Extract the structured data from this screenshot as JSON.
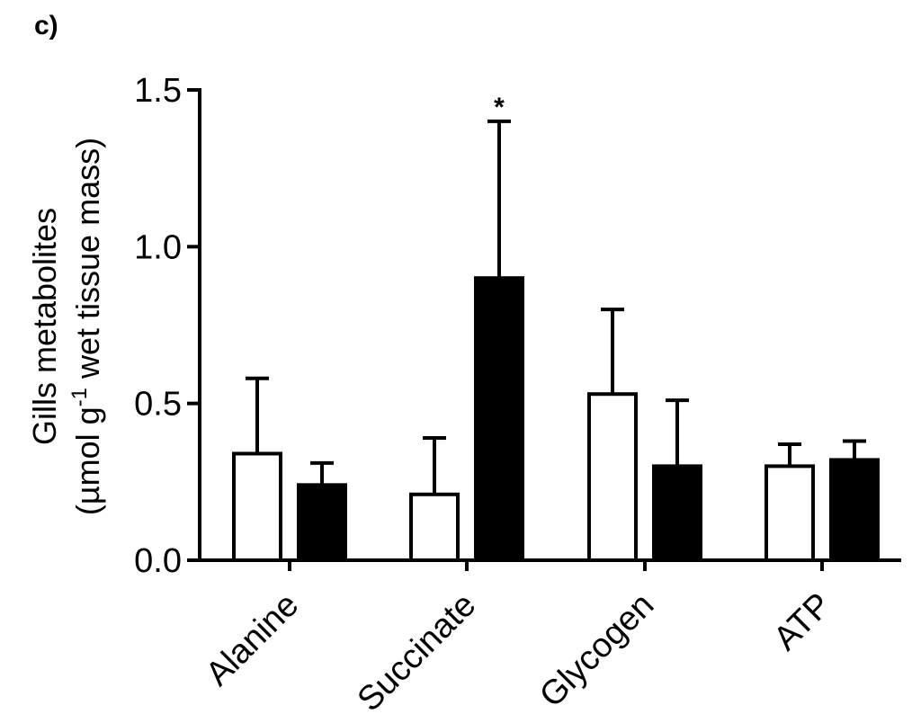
{
  "panel_label": "c)",
  "chart_data": {
    "type": "bar",
    "categories": [
      "Alanine",
      "Succinate",
      "Glycogen",
      "ATP"
    ],
    "series": [
      {
        "values": [
          0.34,
          0.21,
          0.53,
          0.3
        ],
        "errors": [
          0.24,
          0.18,
          0.27,
          0.07
        ],
        "fill": "#ffffff"
      },
      {
        "values": [
          0.24,
          0.9,
          0.3,
          0.32
        ],
        "errors": [
          0.07,
          0.5,
          0.21,
          0.06
        ],
        "fill": "#000000"
      }
    ],
    "significance": [
      {
        "category": "Succinate",
        "series": 1,
        "mark": "*"
      }
    ],
    "ylabel": {
      "line1": "Gills metabolites",
      "line2_pre": "(µmol g",
      "line2_sup": "-1",
      "line2_post": " wet tissue mass)"
    },
    "ylim": [
      0,
      1.5
    ],
    "yticks": [
      "0.0",
      "0.5",
      "1.0",
      "1.5"
    ],
    "grid": false,
    "legend": "none"
  }
}
